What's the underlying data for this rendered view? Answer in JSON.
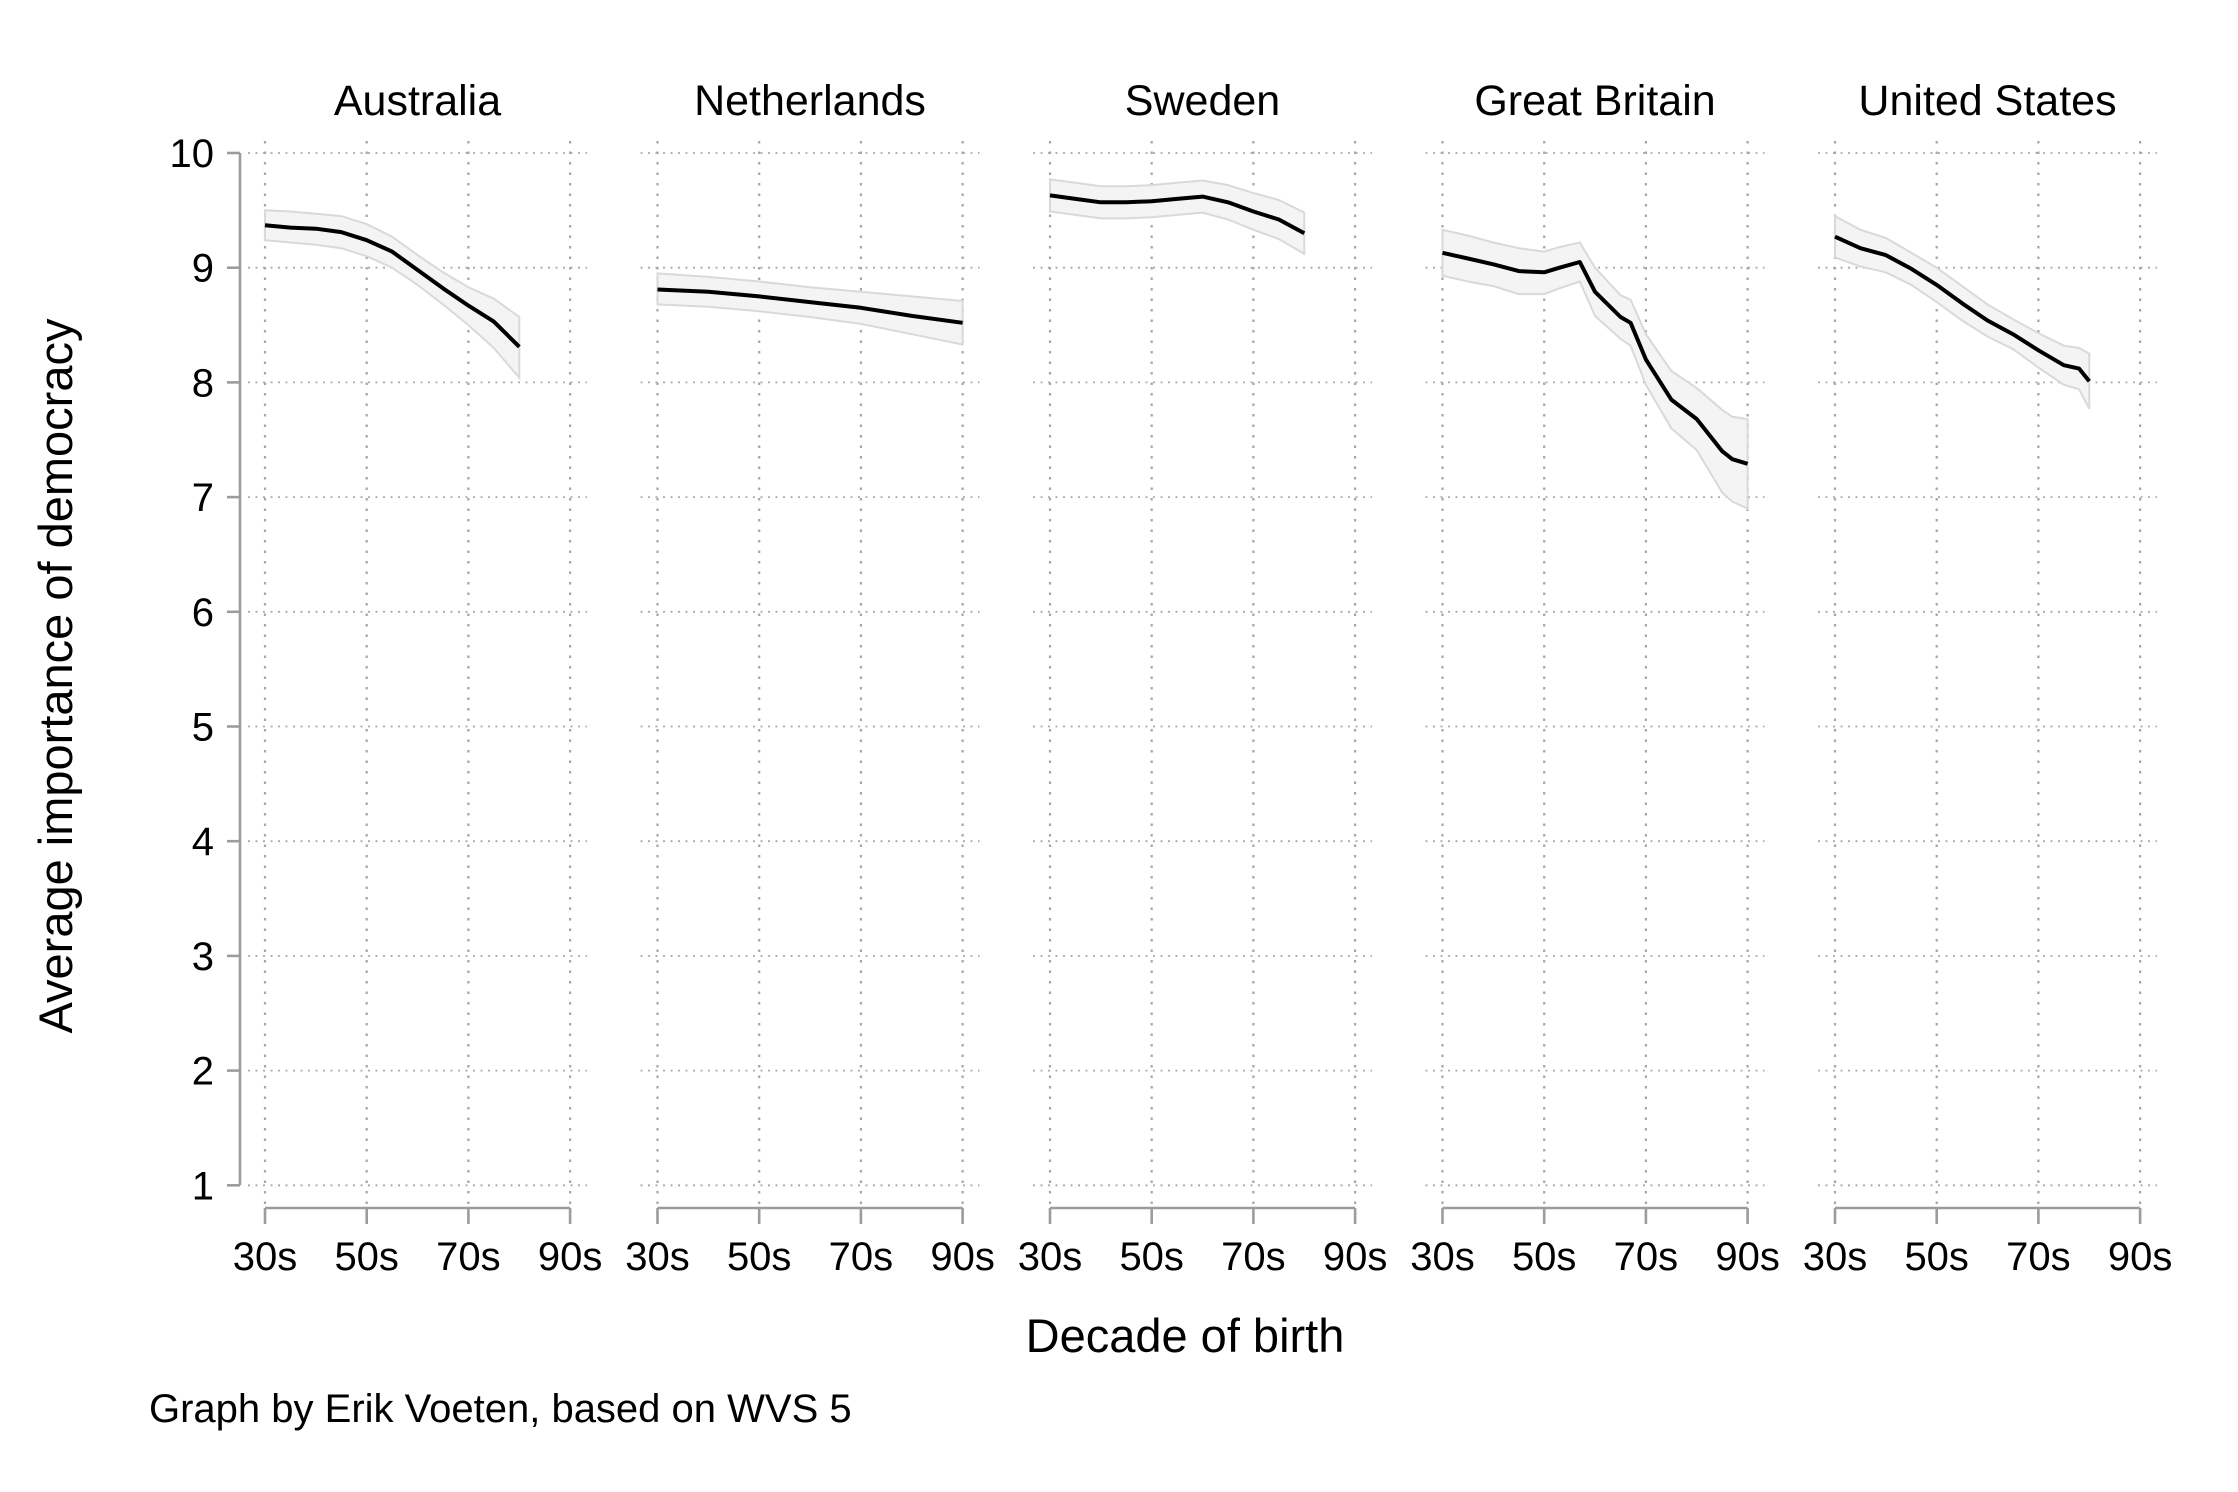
{
  "chart_data": {
    "type": "line",
    "title": "",
    "ylabel": "Average importance of democracy",
    "xlabel": "Decade of birth",
    "caption": "Graph by Erik Voeten, based on WVS 5",
    "ylim": [
      1,
      10
    ],
    "ytick_labels": [
      "1",
      "2",
      "3",
      "4",
      "5",
      "6",
      "7",
      "8",
      "9",
      "10"
    ],
    "ytick_values": [
      1,
      2,
      3,
      4,
      5,
      6,
      7,
      8,
      9,
      10
    ],
    "xtick_labels": [
      "30s",
      "50s",
      "70s",
      "90s"
    ],
    "xtick_years": [
      1930,
      1950,
      1970,
      1990
    ],
    "x_domain": [
      1930,
      1990
    ],
    "grid": true,
    "legend": "none",
    "band_note": "gray region is the confidence band around each smoothed line",
    "colors": {
      "line": "#000000",
      "band_fill": "#f4f4f4",
      "band_edge": "#d9d9d9",
      "grid": "#a9a9a9",
      "axis": "#9c9c9c",
      "text": "#000000",
      "background": "#ffffff"
    },
    "panels": [
      {
        "title": "Australia",
        "x": [
          1930,
          1935,
          1940,
          1945,
          1950,
          1955,
          1960,
          1965,
          1970,
          1975,
          1980
        ],
        "y": [
          9.37,
          9.35,
          9.34,
          9.31,
          9.24,
          9.14,
          8.98,
          8.82,
          8.67,
          8.53,
          8.31
        ],
        "upper": [
          9.5,
          9.49,
          9.47,
          9.45,
          9.38,
          9.27,
          9.11,
          8.96,
          8.83,
          8.73,
          8.57
        ],
        "lower": [
          9.24,
          9.22,
          9.2,
          9.17,
          9.1,
          9.0,
          8.85,
          8.68,
          8.5,
          8.3,
          8.04
        ]
      },
      {
        "title": "Netherlands",
        "x": [
          1930,
          1940,
          1950,
          1960,
          1970,
          1980,
          1990
        ],
        "y": [
          8.81,
          8.79,
          8.75,
          8.7,
          8.65,
          8.58,
          8.52
        ],
        "upper": [
          8.95,
          8.92,
          8.88,
          8.83,
          8.79,
          8.75,
          8.71
        ],
        "lower": [
          8.68,
          8.66,
          8.62,
          8.57,
          8.51,
          8.42,
          8.33
        ]
      },
      {
        "title": "Sweden",
        "x": [
          1930,
          1935,
          1940,
          1945,
          1950,
          1955,
          1960,
          1965,
          1970,
          1975,
          1980
        ],
        "y": [
          9.63,
          9.6,
          9.57,
          9.57,
          9.58,
          9.6,
          9.62,
          9.57,
          9.49,
          9.42,
          9.3
        ],
        "upper": [
          9.77,
          9.74,
          9.71,
          9.71,
          9.72,
          9.74,
          9.76,
          9.72,
          9.65,
          9.59,
          9.48
        ],
        "lower": [
          9.49,
          9.46,
          9.43,
          9.43,
          9.44,
          9.46,
          9.48,
          9.42,
          9.33,
          9.25,
          9.12
        ]
      },
      {
        "title": "Great Britain",
        "x": [
          1930,
          1935,
          1940,
          1945,
          1950,
          1953,
          1957,
          1960,
          1965,
          1967,
          1970,
          1975,
          1980,
          1985,
          1987,
          1990
        ],
        "y": [
          9.13,
          9.08,
          9.03,
          8.97,
          8.96,
          9.0,
          9.05,
          8.79,
          8.57,
          8.52,
          8.2,
          7.85,
          7.68,
          7.4,
          7.33,
          7.29
        ],
        "upper": [
          9.33,
          9.28,
          9.22,
          9.17,
          9.14,
          9.18,
          9.22,
          9.0,
          8.76,
          8.72,
          8.42,
          8.1,
          7.95,
          7.76,
          7.7,
          7.68
        ],
        "lower": [
          8.93,
          8.88,
          8.84,
          8.77,
          8.77,
          8.82,
          8.88,
          8.58,
          8.38,
          8.32,
          7.98,
          7.6,
          7.41,
          7.04,
          6.96,
          6.9
        ]
      },
      {
        "title": "United States",
        "x": [
          1930,
          1935,
          1940,
          1945,
          1950,
          1955,
          1960,
          1965,
          1970,
          1975,
          1978,
          1980
        ],
        "y": [
          9.27,
          9.17,
          9.11,
          8.99,
          8.85,
          8.69,
          8.54,
          8.42,
          8.28,
          8.15,
          8.12,
          8.01
        ],
        "upper": [
          9.45,
          9.33,
          9.26,
          9.13,
          9.0,
          8.84,
          8.68,
          8.55,
          8.43,
          8.32,
          8.3,
          8.25
        ],
        "lower": [
          9.09,
          9.01,
          8.96,
          8.85,
          8.7,
          8.54,
          8.4,
          8.29,
          8.13,
          7.98,
          7.94,
          7.77
        ]
      }
    ]
  }
}
